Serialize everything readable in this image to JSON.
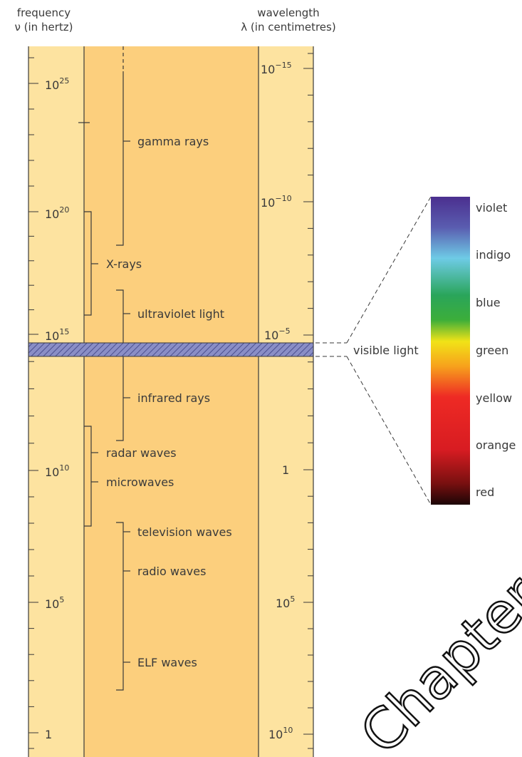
{
  "header": {
    "frequency_title": "frequency",
    "frequency_unit": "ν (in hertz)",
    "wavelength_title": "wavelength",
    "wavelength_unit": "λ (in centimetres)"
  },
  "frequency_scale": [
    {
      "base": "10",
      "exp": "25"
    },
    {
      "base": "10",
      "exp": "20"
    },
    {
      "base": "10",
      "exp": "15"
    },
    {
      "base": "10",
      "exp": "10"
    },
    {
      "base": "10",
      "exp": "5"
    },
    {
      "base": "1",
      "exp": ""
    }
  ],
  "wavelength_scale": [
    {
      "base": "10",
      "exp": "−15"
    },
    {
      "base": "10",
      "exp": "−10"
    },
    {
      "base": "10",
      "exp": "−5"
    },
    {
      "base": "1",
      "exp": ""
    },
    {
      "base": "10",
      "exp": "5"
    },
    {
      "base": "10",
      "exp": "10"
    }
  ],
  "bands": {
    "gamma": "gamma rays",
    "xrays": "X-rays",
    "ultraviolet": "ultraviolet light",
    "infrared": "infrared rays",
    "radar": "radar waves",
    "microwaves": "microwaves",
    "television": "television waves",
    "radio": "radio waves",
    "elf": "ELF waves"
  },
  "visible_light_label": "visible light",
  "spectrum_colors": [
    {
      "label": "violet"
    },
    {
      "label": "indigo"
    },
    {
      "label": "blue"
    },
    {
      "label": "green"
    },
    {
      "label": "yellow"
    },
    {
      "label": "orange"
    },
    {
      "label": "red"
    }
  ],
  "watermark": "Chapter"
}
